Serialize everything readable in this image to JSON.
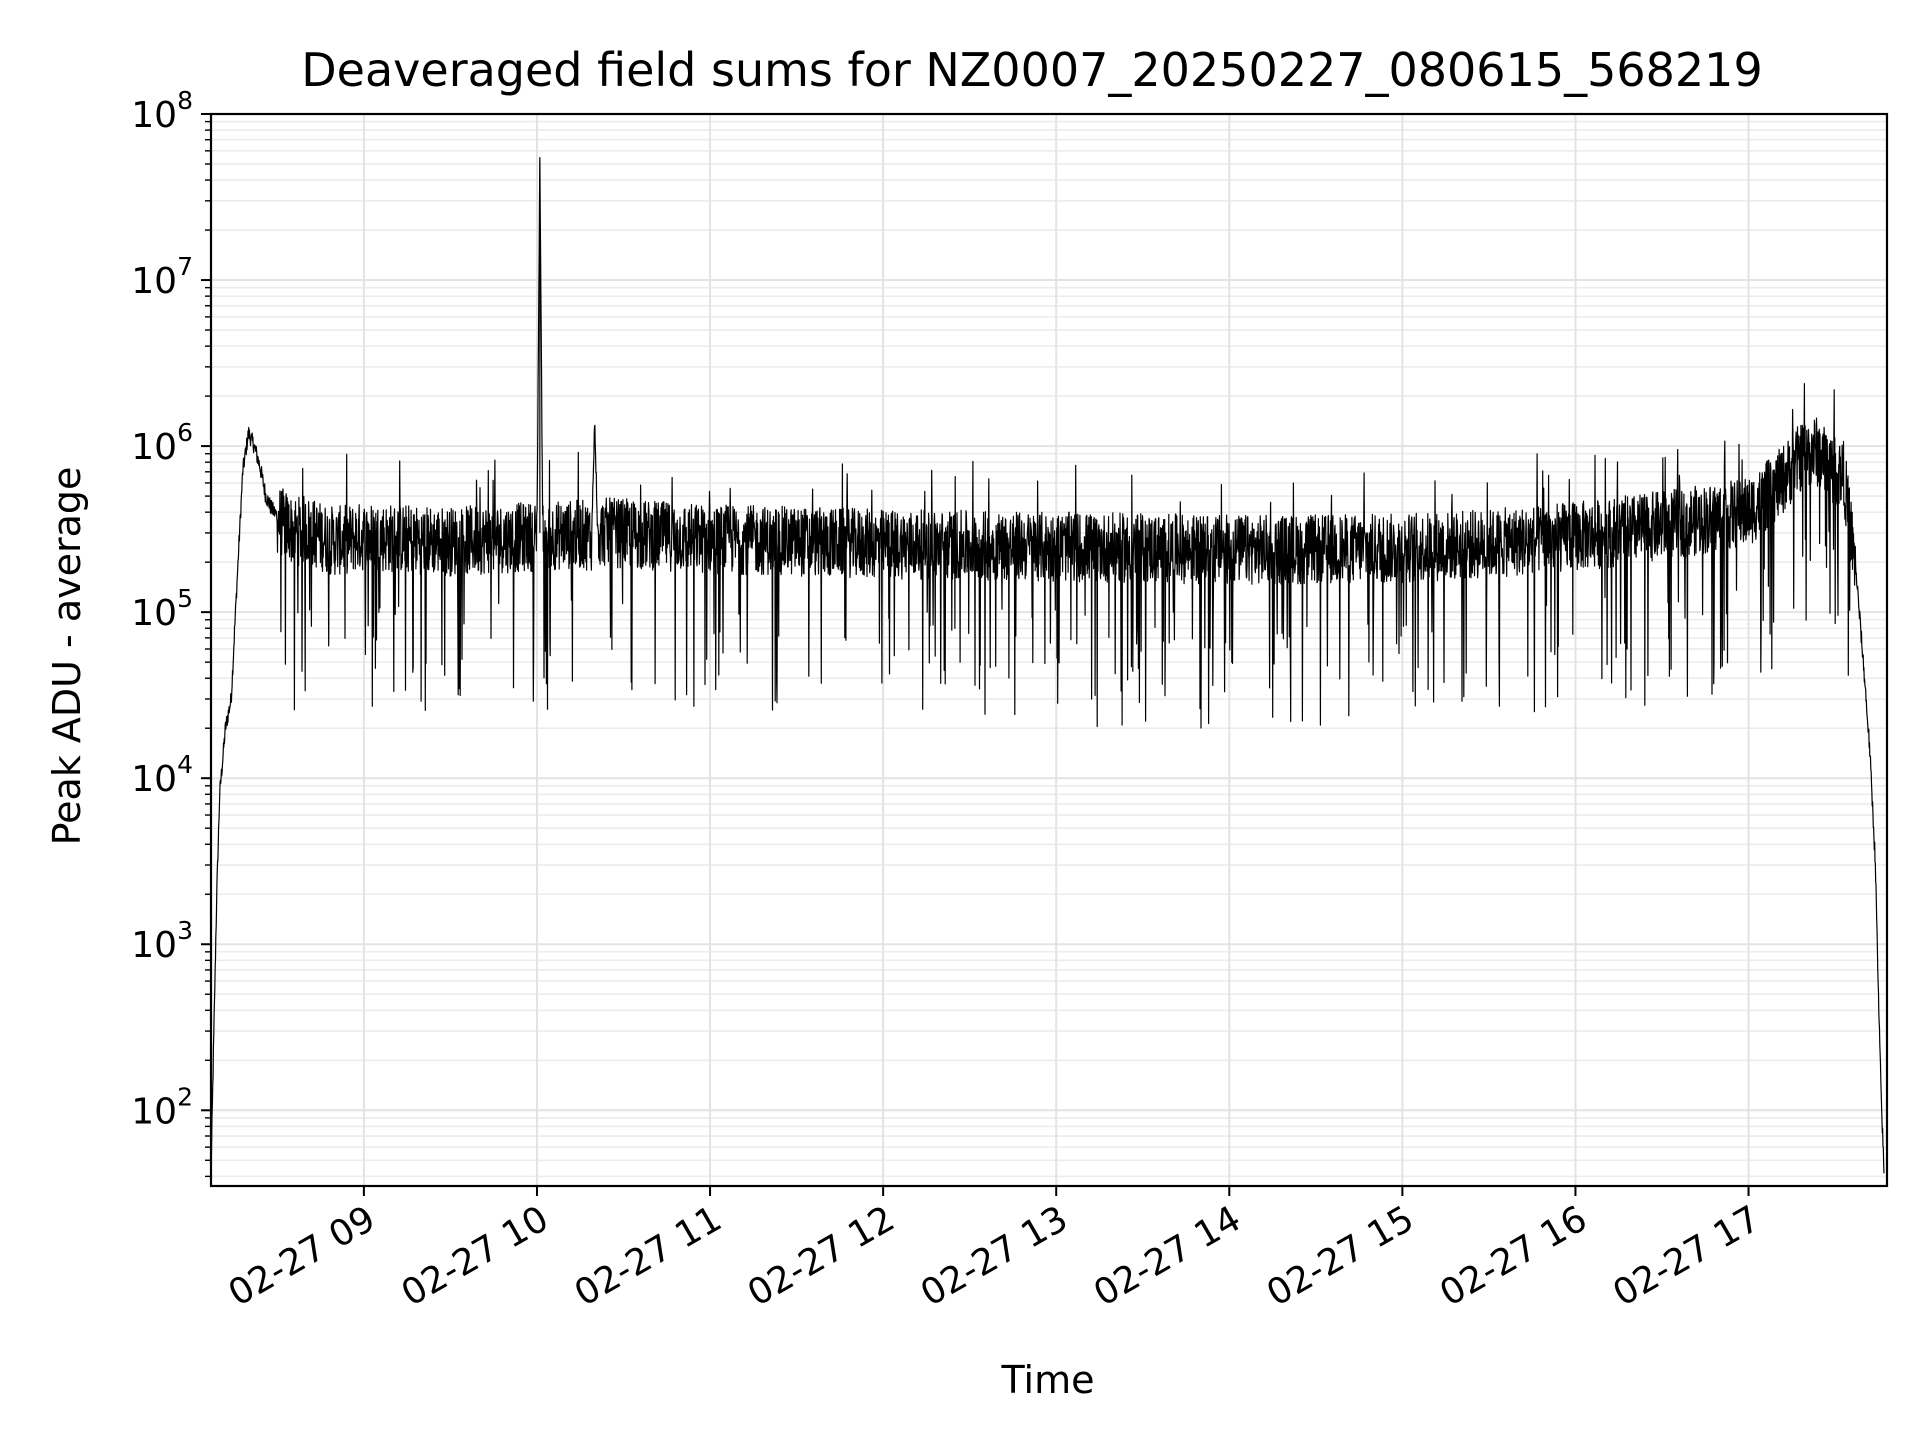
{
  "chart_data": {
    "type": "line",
    "title": "Deaveraged field sums for NZ0007_20250227_080615_568219",
    "xlabel": "Time",
    "ylabel": "Peak ADU - average",
    "y_scale": "log",
    "ylim": [
      35,
      100000000
    ],
    "xlim": [
      "2025-02-27 08:07",
      "2025-02-27 17:48"
    ],
    "grid": true,
    "grid_minor": true,
    "x_tick_rotation": 30,
    "color": "#000000",
    "x_ticks": [
      {
        "value": "2025-02-27 09:00",
        "label": "02-27 09"
      },
      {
        "value": "2025-02-27 10:00",
        "label": "02-27 10"
      },
      {
        "value": "2025-02-27 11:00",
        "label": "02-27 11"
      },
      {
        "value": "2025-02-27 12:00",
        "label": "02-27 12"
      },
      {
        "value": "2025-02-27 13:00",
        "label": "02-27 13"
      },
      {
        "value": "2025-02-27 14:00",
        "label": "02-27 14"
      },
      {
        "value": "2025-02-27 15:00",
        "label": "02-27 15"
      },
      {
        "value": "2025-02-27 16:00",
        "label": "02-27 16"
      },
      {
        "value": "2025-02-27 17:00",
        "label": "02-27 17"
      }
    ],
    "y_ticks": [
      {
        "value": 100,
        "base": "10",
        "exp": "2"
      },
      {
        "value": 1000,
        "base": "10",
        "exp": "3"
      },
      {
        "value": 10000,
        "base": "10",
        "exp": "4"
      },
      {
        "value": 100000,
        "base": "10",
        "exp": "5"
      },
      {
        "value": 1000000,
        "base": "10",
        "exp": "6"
      },
      {
        "value": 10000000,
        "base": "10",
        "exp": "7"
      },
      {
        "value": 100000000,
        "base": "10",
        "exp": "8"
      }
    ],
    "series": [
      {
        "x": [
          "2025-02-27 08:07",
          "2025-02-27 08:08",
          "2025-02-27 08:09",
          "2025-02-27 08:10",
          "2025-02-27 08:12",
          "2025-02-27 08:14",
          "2025-02-27 08:16",
          "2025-02-27 08:18",
          "2025-02-27 08:20",
          "2025-02-27 08:22",
          "2025-02-27 08:24",
          "2025-02-27 08:26",
          "2025-02-27 08:28",
          "2025-02-27 08:30",
          "2025-02-27 08:33",
          "2025-02-27 08:36",
          "2025-02-27 08:40",
          "2025-02-27 08:45",
          "2025-02-27 08:50",
          "2025-02-27 09:00",
          "2025-02-27 09:15",
          "2025-02-27 09:30",
          "2025-02-27 09:45",
          "2025-02-27 10:00",
          "2025-02-27 10:01",
          "2025-02-27 10:02",
          "2025-02-27 10:15",
          "2025-02-27 10:19",
          "2025-02-27 10:20",
          "2025-02-27 10:21",
          "2025-02-27 10:45",
          "2025-02-27 11:00",
          "2025-02-27 11:30",
          "2025-02-27 12:00",
          "2025-02-27 12:30",
          "2025-02-27 13:00",
          "2025-02-27 13:30",
          "2025-02-27 14:00",
          "2025-02-27 14:30",
          "2025-02-27 15:00",
          "2025-02-27 15:30",
          "2025-02-27 16:00",
          "2025-02-27 16:15",
          "2025-02-27 16:30",
          "2025-02-27 16:45",
          "2025-02-27 17:00",
          "2025-02-27 17:10",
          "2025-02-27 17:18",
          "2025-02-27 17:23",
          "2025-02-27 17:28",
          "2025-02-27 17:33",
          "2025-02-27 17:37",
          "2025-02-27 17:40",
          "2025-02-27 17:42",
          "2025-02-27 17:44",
          "2025-02-27 17:45",
          "2025-02-27 17:46",
          "2025-02-27 17:47"
        ],
        "y": [
          40,
          300,
          2000,
          8000,
          20000,
          30000,
          150000,
          700000,
          1200000,
          1000000,
          750000,
          500000,
          420000,
          380000,
          350000,
          320000,
          330000,
          300000,
          280000,
          300000,
          290000,
          280000,
          290000,
          300000,
          55000000,
          300000,
          310000,
          300000,
          1500000,
          320000,
          300000,
          290000,
          280000,
          270000,
          265000,
          260000,
          255000,
          250000,
          250000,
          255000,
          270000,
          300000,
          320000,
          350000,
          380000,
          420000,
          600000,
          900000,
          1000000,
          800000,
          700000,
          200000,
          45000,
          15000,
          3000,
          500,
          120,
          40
        ]
      }
    ]
  }
}
